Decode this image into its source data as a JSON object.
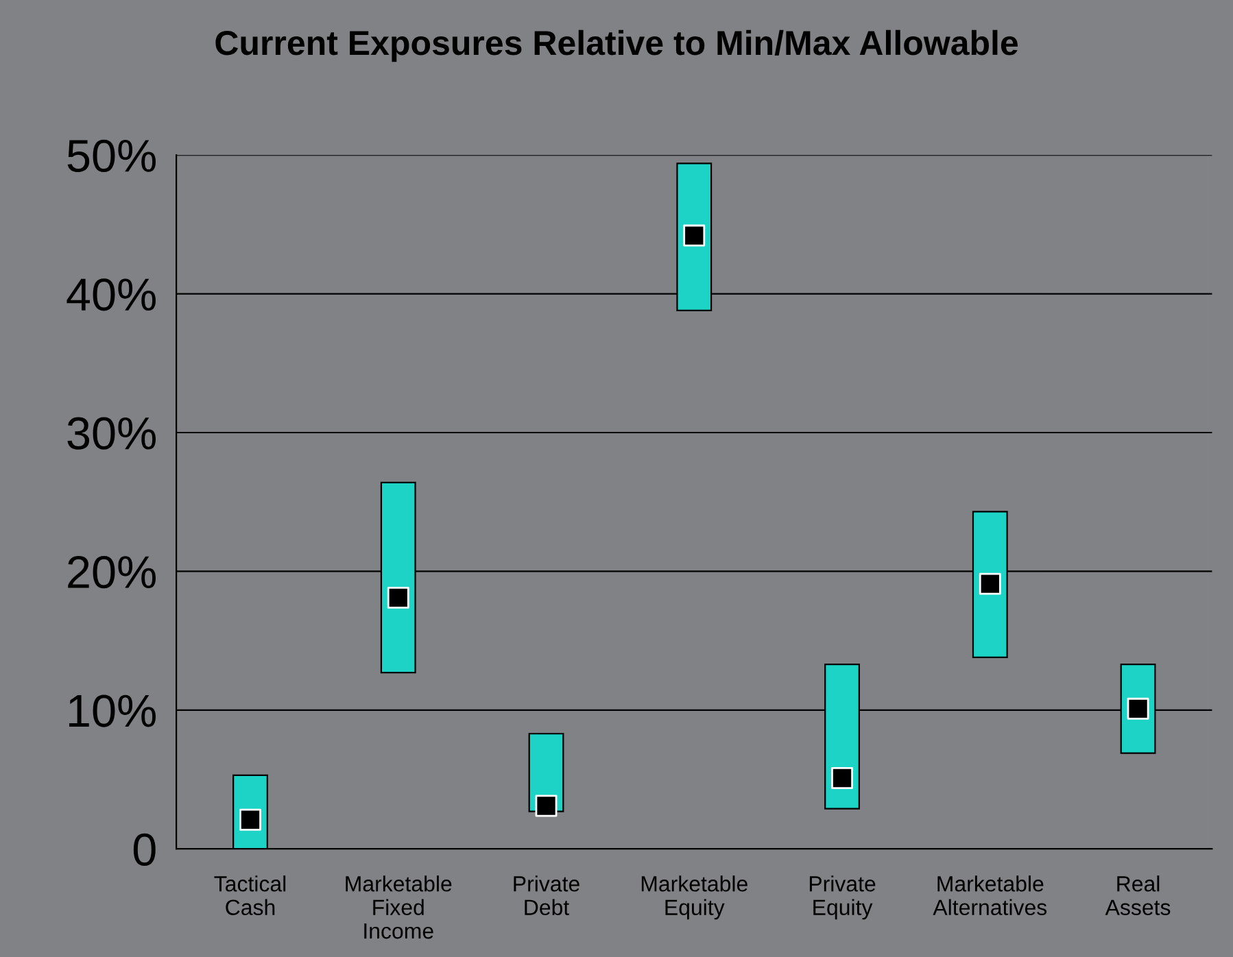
{
  "chart_data": {
    "type": "bar",
    "title": "Current Exposures Relative to Min/Max Allowable",
    "categories": [
      "Tactical\nCash",
      "Marketable\nFixed\nIncome",
      "Private\nDebt",
      "Marketable\nEquity",
      "Private\nEquity",
      "Marketable\nAlternatives",
      "Real\nAssets"
    ],
    "series": [
      {
        "color": "#1dd3c6",
        "base": [
          0,
          12.7,
          2.7,
          38.8,
          2.9,
          13.8,
          6.9
        ],
        "values": [
          5.3,
          13.7,
          5.6,
          10.6,
          10.4,
          10.5,
          6.4
        ]
      },
      {
        "type": "scatter",
        "color": "#000000",
        "marker": "square",
        "x": [
          "Tactical\nCash",
          "Marketable\nFixed\nIncome",
          "Private\nDebt",
          "Marketable\nEquity",
          "Private\nEquity",
          "Marketable\nAlternatives",
          "Real\nAssets"
        ],
        "values": [
          2.1,
          18.1,
          3.1,
          44.2,
          5.1,
          19.1,
          10.1
        ]
      }
    ],
    "ylim": [
      0,
      50
    ],
    "yticks": [
      0,
      {
        "value": 10,
        "label": "10%"
      },
      {
        "value": 20,
        "label": "20%"
      },
      {
        "value": 30,
        "label": "30%"
      },
      {
        "value": 40,
        "label": "40%"
      },
      {
        "value": 50,
        "label": "50%"
      }
    ],
    "grid": "y"
  }
}
